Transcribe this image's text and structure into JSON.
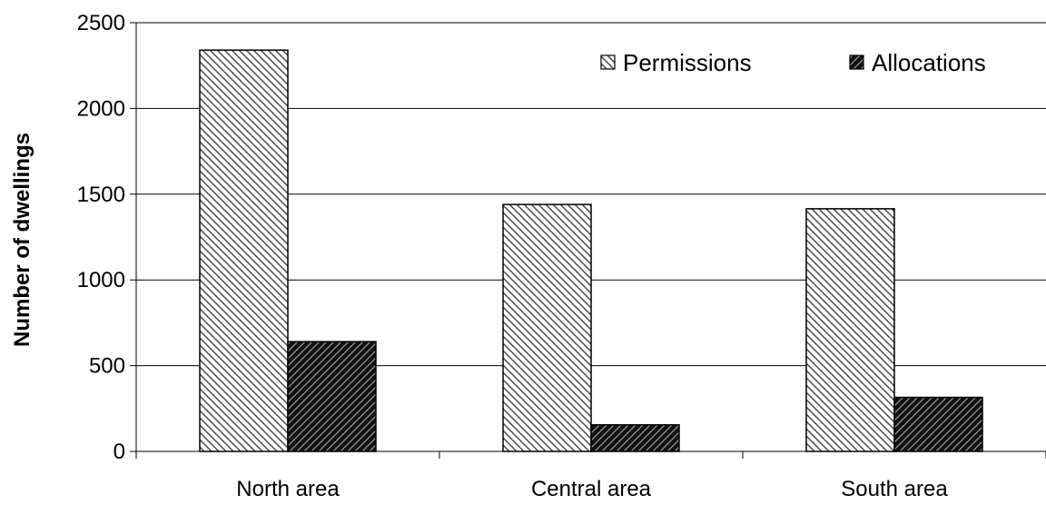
{
  "chart_data": {
    "type": "bar",
    "title": "",
    "xlabel": "",
    "ylabel": "Number of dwellings",
    "categories": [
      "North area",
      "Central area",
      "South area"
    ],
    "series": [
      {
        "name": "Permissions",
        "values": [
          2340,
          1440,
          1415
        ],
        "pattern": "light-hatch"
      },
      {
        "name": "Allocations",
        "values": [
          640,
          155,
          315
        ],
        "pattern": "dark-hatch"
      }
    ],
    "ylim": [
      0,
      2500
    ],
    "yticks": [
      0,
      500,
      1000,
      1500,
      2000,
      2500
    ],
    "grid": "horizontal",
    "legend": "top-right",
    "colors": {
      "grid": "#000000",
      "bar_outline": "#000000",
      "light_fill": "#ffffff",
      "dark_fill": "#1a1a1a"
    }
  }
}
